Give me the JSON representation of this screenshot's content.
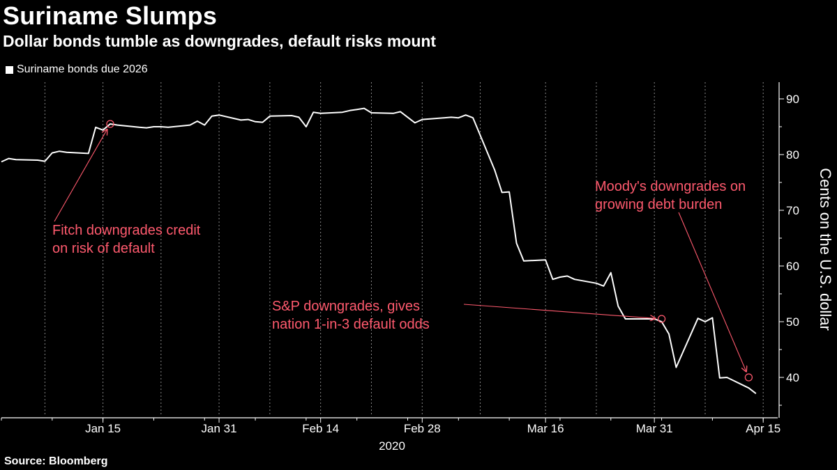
{
  "header": {
    "title": "Suriname Slumps",
    "subtitle": "Dollar bonds tumble as downgrades, default risks mount"
  },
  "legend": {
    "label": "Suriname bonds due 2026"
  },
  "footer": {
    "source": "Source: Bloomberg"
  },
  "colors": {
    "background": "#000000",
    "line": "#ffffff",
    "annotation": "#ff5a6e",
    "grid": "#888888"
  },
  "chart_data": {
    "type": "line",
    "title": "Suriname Slumps",
    "subtitle": "Dollar bonds tumble as downgrades, default risks mount",
    "ylabel": "Cents on the U.S. dollar",
    "xlabel": "2020",
    "ylim": [
      33,
      93
    ],
    "yticks": [
      40,
      50,
      60,
      70,
      80,
      90
    ],
    "xlim": [
      "2020-01-01",
      "2020-04-17"
    ],
    "xticks": [
      {
        "date": "2020-01-15",
        "label": "Jan 15"
      },
      {
        "date": "2020-01-31",
        "label": "Jan 31"
      },
      {
        "date": "2020-02-14",
        "label": "Feb 14"
      },
      {
        "date": "2020-02-28",
        "label": "Feb 28"
      },
      {
        "date": "2020-03-16",
        "label": "Mar 16"
      },
      {
        "date": "2020-03-31",
        "label": "Mar 31"
      },
      {
        "date": "2020-04-15",
        "label": "Apr 15"
      }
    ],
    "year_label": "2020",
    "grid": "vertical dotted",
    "legend_position": "top-left",
    "series": [
      {
        "name": "Suriname bonds due 2026",
        "points": [
          [
            "2020-01-01",
            78.7
          ],
          [
            "2020-01-02",
            79.3
          ],
          [
            "2020-01-03",
            79.1
          ],
          [
            "2020-01-06",
            79.0
          ],
          [
            "2020-01-07",
            78.8
          ],
          [
            "2020-01-08",
            80.3
          ],
          [
            "2020-01-09",
            80.6
          ],
          [
            "2020-01-10",
            80.4
          ],
          [
            "2020-01-13",
            80.2
          ],
          [
            "2020-01-14",
            84.9
          ],
          [
            "2020-01-15",
            84.4
          ],
          [
            "2020-01-16",
            85.5
          ],
          [
            "2020-01-17",
            85.3
          ],
          [
            "2020-01-20",
            84.9
          ],
          [
            "2020-01-21",
            84.8
          ],
          [
            "2020-01-22",
            85.0
          ],
          [
            "2020-01-23",
            85.0
          ],
          [
            "2020-01-24",
            84.9
          ],
          [
            "2020-01-27",
            85.3
          ],
          [
            "2020-01-28",
            86.0
          ],
          [
            "2020-01-29",
            85.3
          ],
          [
            "2020-01-30",
            86.9
          ],
          [
            "2020-01-31",
            87.1
          ],
          [
            "2020-02-03",
            86.2
          ],
          [
            "2020-02-04",
            86.3
          ],
          [
            "2020-02-05",
            85.9
          ],
          [
            "2020-02-06",
            85.8
          ],
          [
            "2020-02-07",
            86.9
          ],
          [
            "2020-02-10",
            87.0
          ],
          [
            "2020-02-11",
            86.7
          ],
          [
            "2020-02-12",
            85.0
          ],
          [
            "2020-02-13",
            87.6
          ],
          [
            "2020-02-14",
            87.4
          ],
          [
            "2020-02-17",
            87.6
          ],
          [
            "2020-02-18",
            87.9
          ],
          [
            "2020-02-19",
            88.1
          ],
          [
            "2020-02-20",
            88.3
          ],
          [
            "2020-02-21",
            87.5
          ],
          [
            "2020-02-24",
            87.4
          ],
          [
            "2020-02-25",
            87.7
          ],
          [
            "2020-02-26",
            86.7
          ],
          [
            "2020-02-27",
            85.7
          ],
          [
            "2020-02-28",
            86.3
          ],
          [
            "2020-03-02",
            86.6
          ],
          [
            "2020-03-03",
            86.7
          ],
          [
            "2020-03-04",
            86.6
          ],
          [
            "2020-03-05",
            87.1
          ],
          [
            "2020-03-06",
            86.6
          ],
          [
            "2020-03-09",
            77.2
          ],
          [
            "2020-03-10",
            73.2
          ],
          [
            "2020-03-11",
            73.3
          ],
          [
            "2020-03-12",
            64.1
          ],
          [
            "2020-03-13",
            60.9
          ],
          [
            "2020-03-16",
            61.1
          ],
          [
            "2020-03-17",
            57.6
          ],
          [
            "2020-03-18",
            58.0
          ],
          [
            "2020-03-19",
            58.2
          ],
          [
            "2020-03-20",
            57.6
          ],
          [
            "2020-03-23",
            56.9
          ],
          [
            "2020-03-24",
            56.4
          ],
          [
            "2020-03-25",
            58.8
          ],
          [
            "2020-03-26",
            52.8
          ],
          [
            "2020-03-27",
            50.5
          ],
          [
            "2020-03-30",
            50.5
          ],
          [
            "2020-03-31",
            50.5
          ],
          [
            "2020-04-01",
            50.0
          ],
          [
            "2020-04-02",
            47.8
          ],
          [
            "2020-04-03",
            41.8
          ],
          [
            "2020-04-06",
            50.6
          ],
          [
            "2020-04-07",
            50.0
          ],
          [
            "2020-04-08",
            50.7
          ],
          [
            "2020-04-09",
            39.9
          ],
          [
            "2020-04-10",
            40.0
          ],
          [
            "2020-04-13",
            38.1
          ],
          [
            "2020-04-14",
            37.1
          ]
        ]
      }
    ],
    "annotations": [
      {
        "text_lines": [
          "Fitch downgrades credit",
          "on risk of default"
        ],
        "date": "2020-01-16",
        "value": 85.5
      },
      {
        "text_lines": [
          "S&P downgrades, gives",
          "nation 1-in-3 default odds"
        ],
        "date": "2020-04-01",
        "value": 50.5
      },
      {
        "text_lines": [
          "Moody's downgrades on",
          "growing debt burden"
        ],
        "date": "2020-04-13",
        "value": 40.0
      }
    ]
  }
}
